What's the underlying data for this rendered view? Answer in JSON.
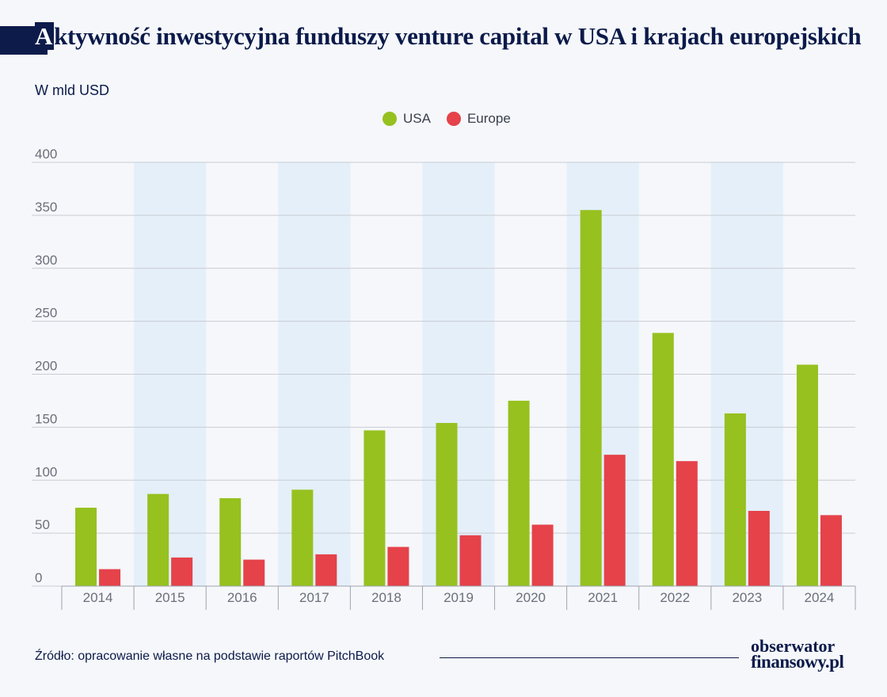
{
  "header": {
    "title_first_letter": "A",
    "title_rest": "ktywność inwestycyjna funduszy venture capital w USA i krajach europejskich",
    "unit_label": "W mld USD"
  },
  "footer": {
    "source": "Źródło: opracowanie własne na podstawie raportów PitchBook",
    "logo_line1": "obserwator",
    "logo_line2": "finansowy.pl"
  },
  "chart_data": {
    "type": "bar",
    "title": "Aktywność inwestycyjna funduszy venture capital w USA i krajach europejskich",
    "ylabel": "W mld USD",
    "xlabel": "",
    "categories": [
      "2014",
      "2015",
      "2016",
      "2017",
      "2018",
      "2019",
      "2020",
      "2021",
      "2022",
      "2023",
      "2024"
    ],
    "series": [
      {
        "name": "USA",
        "color": "#96c11f",
        "values": [
          74,
          87,
          83,
          91,
          147,
          154,
          175,
          355,
          239,
          163,
          209
        ]
      },
      {
        "name": "Europe",
        "color": "#e5424a",
        "values": [
          16,
          27,
          25,
          30,
          37,
          48,
          58,
          124,
          118,
          71,
          67
        ]
      }
    ],
    "ylim": [
      0,
      400
    ],
    "yticks": [
      0,
      50,
      100,
      150,
      200,
      250,
      300,
      350,
      400
    ],
    "grid": true,
    "legend_position": "top-center",
    "band_color": "#e4eff9",
    "grid_color": "#c9ccd3",
    "tick_color": "#6b6f7a"
  }
}
